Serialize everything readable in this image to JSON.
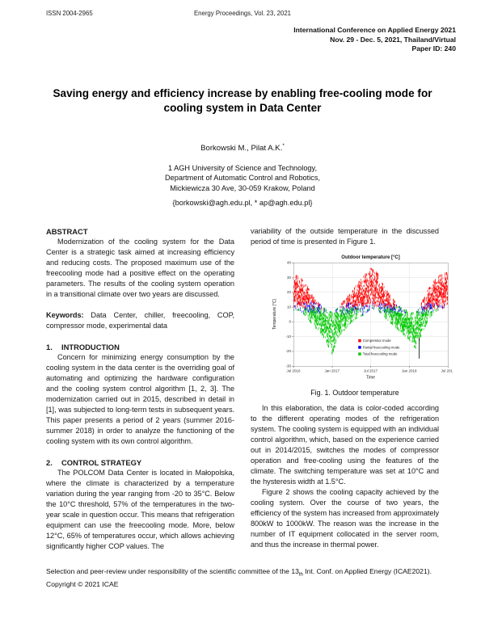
{
  "header": {
    "issn": "ISSN 2004-2965",
    "journal": "Energy Proceedings, Vol. 23, 2021",
    "conf_lines": [
      "International Conference on Applied Energy 2021",
      "Nov. 29 - Dec. 5, 2021, Thailand/Virtual",
      "Paper ID: 240"
    ]
  },
  "title_block": {
    "title": "Saving energy and efficiency increase by enabling free-cooling mode for cooling system in Data Center",
    "authors_main": "Borkowski M., Pilat A.K.",
    "authors_sup": "*",
    "affiliation": [
      "1 AGH University of Science and Technology,",
      "Department of Automatic Control and Robotics,",
      "Mickiewicza 30 Ave, 30-059 Krakow, Poland"
    ],
    "emails": "{borkowski@agh.edu.pl, * ap@agh.edu.pl}"
  },
  "left_column": {
    "abstract_heading": "ABSTRACT",
    "abstract_body": "Modernization of the cooling system for the Data Center is a strategic task aimed at increasing efficiency and reducing costs. The proposed maximum use of the freecooling mode had a positive effect on the operating parameters. The results of the cooling system operation in a transitional climate over two years are discussed.",
    "keywords_label": "Keywords:",
    "keywords_text": " Data Center, chiller, freecooling, COP, compressor mode, experimental data",
    "sections": [
      {
        "number": "1.",
        "heading": "INTRODUCTION",
        "body": "Concern for minimizing energy consumption by the cooling system in the data center is the overriding goal of automating and optimizing the hardware configuration and the cooling system control algorithm [1, 2, 3]. The modernization carried out in 2015, described in detail in [1], was subjected to long-term tests in subsequent years. This paper presents a period of 2 years (summer 2016-summer 2018) in order to analyze the functioning of the cooling system with its own control algorithm."
      },
      {
        "number": "2.",
        "heading": "CONTROL STRATEGY",
        "body": "The POLCOM Data Center is located in Małopolska, where the climate is characterized by a temperature variation during the year ranging from -20 to 35°C. Below the 10°C threshold, 57% of the temperatures in the two-year scale in question occur. This means that refrigeration equipment can use the freecooling mode. More, below 12°C, 65% of temperatures occur, which allows achieving significantly higher COP values. The"
      }
    ]
  },
  "right_column": {
    "para1": "variability of the outside temperature in the discussed period of time is presented in Figure 1.",
    "fig_caption": "Fig. 1. Outdoor temperature",
    "para2": "In this elaboration, the data is color-coded according to the different operating modes of the refrigeration system. The cooling system is equipped with an individual control algorithm, which, based on the experience carried out in 2014/2015, switches the modes of compressor operation and free-cooling using the features of the climate. The switching temperature was set at 10°C and the hysteresis width at 1.5°C.",
    "para3": "Figure 2 shows the cooling capacity achieved by the cooling system. Over the course of two years, the efficiency of the system has increased from approximately 800kW to 1000kW. The reason was the increase in the number of IT equipment collocated in the server room, and thus the increase in thermal power."
  },
  "footer": {
    "line1_pre": "Selection and peer-review under responsibility of the scientific committee of the 13",
    "line1_sub": "th",
    "line1_post": " Int. Conf. on Applied Energy (ICAE2021).",
    "line2": "Copyright © 2021 ICAE"
  },
  "chart_data": {
    "type": "scatter",
    "title": "Outdoor temperature [°C]",
    "xlabel": "Time",
    "ylabel": "Temperature [°C]",
    "ylim": [
      -30,
      40
    ],
    "yticks": [
      40,
      30,
      20,
      10,
      0,
      -10,
      -20,
      -30
    ],
    "xtick_labels": [
      "Jul 2016",
      "Jan 2017",
      "Jul 2017",
      "Jan 2018",
      "Jul 2018"
    ],
    "x_span_days": 730,
    "grid": true,
    "legend_position": "inside lower center",
    "series": [
      {
        "name": "Compressor mode",
        "color": "#ff0000"
      },
      {
        "name": "Partial freecooling mode",
        "color": "#0000ee"
      },
      {
        "name": "Total freecooling mode",
        "color": "#00c800"
      }
    ],
    "mode_rule": {
      "switch_temp_c": 10,
      "hysteresis_c": 1.5,
      "red_above": 11,
      "green_below": 7.5,
      "mix": 3
    },
    "sampling": {
      "step_days": 0.2,
      "seed": 11,
      "point_w": 1.2,
      "point_h": 5
    },
    "monthly_envelope": [
      {
        "month": "Jul 2016",
        "min": 8,
        "max": 32
      },
      {
        "month": "Aug 2016",
        "min": 8,
        "max": 30
      },
      {
        "month": "Sep 2016",
        "min": 4,
        "max": 25
      },
      {
        "month": "Oct 2016",
        "min": -2,
        "max": 17
      },
      {
        "month": "Nov 2016",
        "min": -6,
        "max": 12
      },
      {
        "month": "Dec 2016",
        "min": -12,
        "max": 8
      },
      {
        "month": "Jan 2017",
        "min": -22,
        "max": 6
      },
      {
        "month": "Feb 2017",
        "min": -10,
        "max": 9
      },
      {
        "month": "Mar 2017",
        "min": -5,
        "max": 15
      },
      {
        "month": "Apr 2017",
        "min": 0,
        "max": 19
      },
      {
        "month": "May 2017",
        "min": 3,
        "max": 26
      },
      {
        "month": "Jun 2017",
        "min": 5,
        "max": 31
      },
      {
        "month": "Jul 2017",
        "min": 9,
        "max": 36
      },
      {
        "month": "Aug 2017",
        "min": 9,
        "max": 33
      },
      {
        "month": "Sep 2017",
        "min": 4,
        "max": 24
      },
      {
        "month": "Oct 2017",
        "min": 0,
        "max": 18
      },
      {
        "month": "Nov 2017",
        "min": -4,
        "max": 12
      },
      {
        "month": "Dec 2017",
        "min": -8,
        "max": 8
      },
      {
        "month": "Jan 2018",
        "min": -12,
        "max": 7
      },
      {
        "month": "Feb 2018",
        "min": -18,
        "max": 5
      },
      {
        "month": "Mar 2018",
        "min": -8,
        "max": 13
      },
      {
        "month": "Apr 2018",
        "min": 2,
        "max": 22
      },
      {
        "month": "May 2018",
        "min": 7,
        "max": 28
      },
      {
        "month": "Jun 2018",
        "min": 9,
        "max": 32
      },
      {
        "month": "Jul 2018",
        "min": 11,
        "max": 33
      }
    ],
    "annotation_line": {
      "x_frac": 0.815,
      "temp_from": -11,
      "temp_to": -25,
      "color": "#000000"
    },
    "legend_anchor": {
      "x_frac": 0.42,
      "row_temps": [
        -13,
        -17.5,
        -22
      ]
    }
  }
}
